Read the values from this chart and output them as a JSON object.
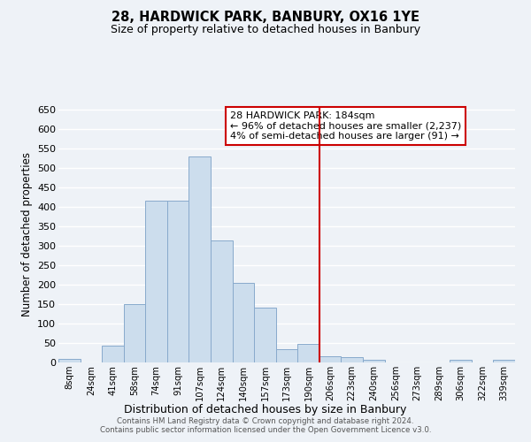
{
  "title": "28, HARDWICK PARK, BANBURY, OX16 1YE",
  "subtitle": "Size of property relative to detached houses in Banbury",
  "xlabel": "Distribution of detached houses by size in Banbury",
  "ylabel": "Number of detached properties",
  "bar_labels": [
    "8sqm",
    "24sqm",
    "41sqm",
    "58sqm",
    "74sqm",
    "91sqm",
    "107sqm",
    "124sqm",
    "140sqm",
    "157sqm",
    "173sqm",
    "190sqm",
    "206sqm",
    "223sqm",
    "240sqm",
    "256sqm",
    "273sqm",
    "289sqm",
    "306sqm",
    "322sqm",
    "339sqm"
  ],
  "bar_heights": [
    8,
    0,
    44,
    150,
    417,
    416,
    530,
    315,
    205,
    142,
    35,
    48,
    15,
    14,
    6,
    0,
    0,
    0,
    7,
    0,
    7
  ],
  "bar_color": "#ccdded",
  "bar_edge_color": "#88aacc",
  "vline_x": 11.5,
  "vline_color": "#cc0000",
  "ylim": [
    0,
    660
  ],
  "yticks": [
    0,
    50,
    100,
    150,
    200,
    250,
    300,
    350,
    400,
    450,
    500,
    550,
    600,
    650
  ],
  "annotation_title": "28 HARDWICK PARK: 184sqm",
  "annotation_line1": "← 96% of detached houses are smaller (2,237)",
  "annotation_line2": "4% of semi-detached houses are larger (91) →",
  "annotation_box_color": "#cc0000",
  "footer1": "Contains HM Land Registry data © Crown copyright and database right 2024.",
  "footer2": "Contains public sector information licensed under the Open Government Licence v3.0.",
  "background_color": "#eef2f7",
  "grid_color": "#ffffff"
}
